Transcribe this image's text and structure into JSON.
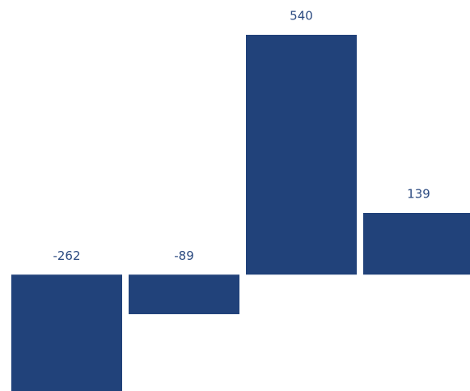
{
  "chart_data": {
    "type": "bar",
    "categories": [
      null,
      null,
      null,
      null
    ],
    "values": [
      -262,
      -89,
      540,
      139
    ],
    "color": "#21427a"
  }
}
